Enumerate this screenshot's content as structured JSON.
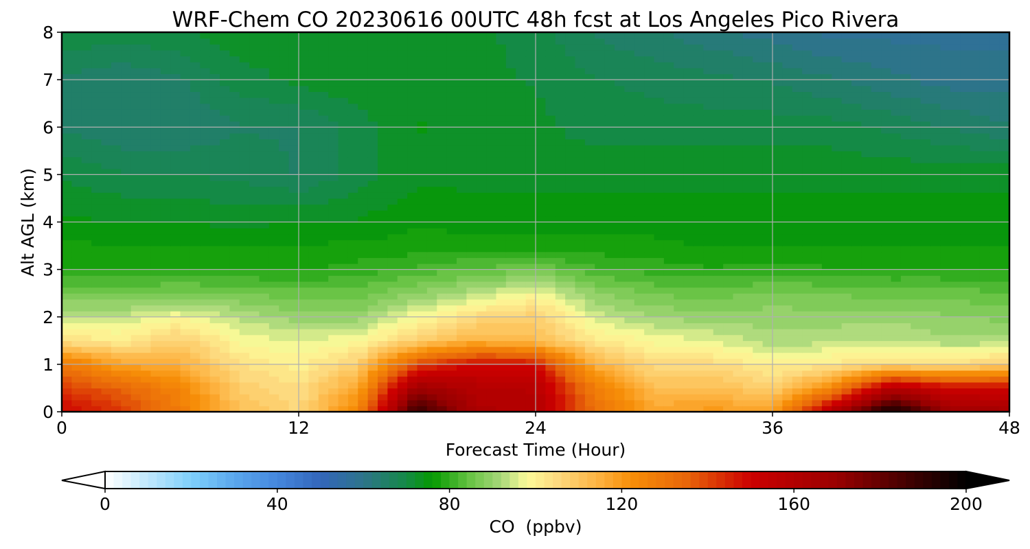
{
  "chart_data": {
    "type": "heatmap",
    "title": "WRF-Chem CO  20230616 00UTC 48h fcst at Los Angeles Pico Rivera",
    "xlabel": "Forecast Time (Hour)",
    "ylabel": "Alt AGL (km)",
    "xlim": [
      0,
      48
    ],
    "ylim": [
      0,
      8
    ],
    "xticks": [
      0,
      12,
      24,
      36,
      48
    ],
    "yticks": [
      0,
      1,
      2,
      3,
      4,
      5,
      6,
      7,
      8
    ],
    "grid": true,
    "x": [
      0,
      3,
      6,
      9,
      12,
      15,
      18,
      21,
      24,
      27,
      30,
      33,
      36,
      39,
      42,
      45,
      48
    ],
    "y": [
      0,
      0.5,
      1,
      1.5,
      2,
      2.5,
      3,
      3.5,
      4,
      5,
      6,
      7,
      8
    ],
    "z": [
      [
        150,
        142,
        128,
        112,
        106,
        125,
        190,
        162,
        160,
        132,
        118,
        120,
        118,
        160,
        198,
        168,
        165
      ],
      [
        142,
        135,
        125,
        108,
        104,
        118,
        168,
        160,
        158,
        128,
        112,
        112,
        108,
        125,
        160,
        150,
        150
      ],
      [
        130,
        118,
        115,
        104,
        100,
        108,
        140,
        150,
        148,
        115,
        105,
        105,
        100,
        102,
        105,
        104,
        108
      ],
      [
        104,
        101,
        108,
        98,
        96,
        98,
        108,
        115,
        112,
        102,
        98,
        96,
        92,
        93,
        93,
        92,
        92
      ],
      [
        94,
        94,
        98,
        93,
        90,
        90,
        98,
        105,
        108,
        95,
        91,
        90,
        90,
        90,
        91,
        89,
        88
      ],
      [
        86,
        86,
        87,
        86,
        85,
        85,
        89,
        93,
        98,
        89,
        86,
        85,
        87,
        86,
        85,
        85,
        84
      ],
      [
        79,
        79,
        79,
        79,
        78,
        80,
        82,
        84,
        86,
        82,
        80,
        79,
        80,
        79,
        79,
        79,
        78
      ],
      [
        77,
        76,
        76,
        76,
        76,
        77,
        77,
        78,
        77,
        77,
        77,
        76,
        76,
        76,
        76,
        76,
        76
      ],
      [
        74,
        74,
        74,
        73,
        74,
        74,
        76,
        75,
        75,
        75,
        75,
        75,
        75,
        75,
        75,
        75,
        75
      ],
      [
        71,
        69,
        69,
        68,
        66,
        70,
        73,
        73,
        73,
        73,
        73,
        73,
        73,
        73,
        73,
        73,
        73
      ],
      [
        66,
        64,
        64,
        66,
        66,
        70,
        74,
        72,
        72,
        70,
        70,
        70,
        70,
        70,
        68,
        66,
        64
      ],
      [
        66,
        64,
        66,
        70,
        72,
        73,
        73,
        72,
        71,
        69,
        68,
        67,
        66,
        64,
        62,
        60,
        60
      ],
      [
        71,
        70,
        71,
        73,
        73,
        73,
        73,
        72,
        70,
        66,
        64,
        62,
        60,
        58,
        58,
        58,
        58
      ]
    ],
    "colorbar": {
      "label": "CO  (ppbv)",
      "min": 0,
      "max": 200,
      "ticks": [
        0,
        40,
        80,
        120,
        160,
        200
      ],
      "extend": "both",
      "stops": [
        [
          0,
          "#ffffff"
        ],
        [
          20,
          "#7fd0fb"
        ],
        [
          30,
          "#5aa7ec"
        ],
        [
          40,
          "#4587dd"
        ],
        [
          50,
          "#3366bb"
        ],
        [
          60,
          "#2d748a"
        ],
        [
          70,
          "#148a46"
        ],
        [
          76,
          "#059a00"
        ],
        [
          85,
          "#6ac446"
        ],
        [
          92,
          "#a8d87a"
        ],
        [
          98,
          "#fdfb99"
        ],
        [
          105,
          "#fdda7f"
        ],
        [
          115,
          "#fdb13e"
        ],
        [
          122,
          "#f78f08"
        ],
        [
          135,
          "#e86609"
        ],
        [
          150,
          "#cc0000"
        ],
        [
          170,
          "#990000"
        ],
        [
          188,
          "#3a0000"
        ],
        [
          200,
          "#000000"
        ]
      ]
    }
  }
}
